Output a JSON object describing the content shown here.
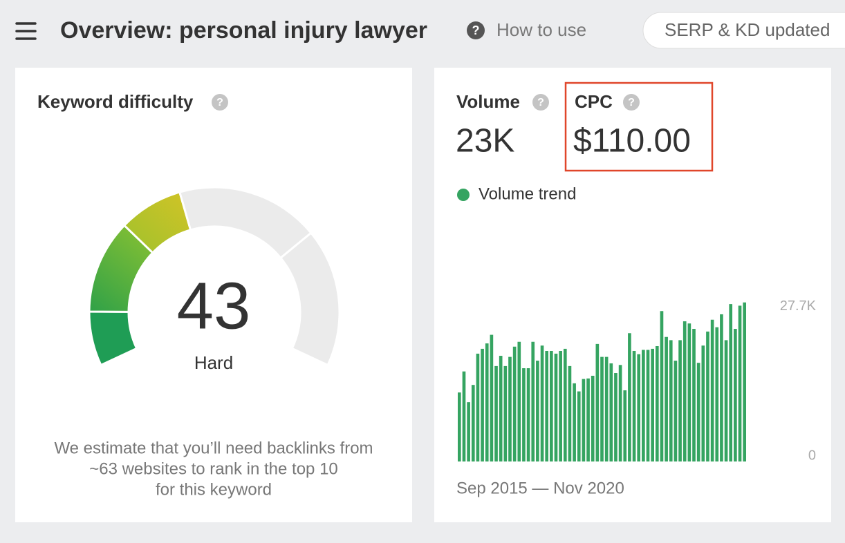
{
  "header": {
    "title": "Overview: personal injury lawyer",
    "how_to_use": "How to use",
    "badge": "SERP & KD updated",
    "help_icon": "?"
  },
  "keyword_difficulty": {
    "label": "Keyword difficulty",
    "score": 43,
    "score_label": "Hard",
    "description": [
      "We estimate that you’ll need backlinks from",
      "~63 websites to rank in the top 10",
      "for this keyword"
    ]
  },
  "metrics": {
    "volume_label": "Volume",
    "volume": "23K",
    "cpc_label": "CPC",
    "cpc": "$110.00"
  },
  "chart_data": {
    "type": "bar",
    "x_range_label": "Sep 2015 — Nov 2020",
    "series": [
      {
        "name": "Volume trend",
        "color": "#35a461",
        "values": [
          12800,
          16700,
          11000,
          14200,
          20000,
          20900,
          21900,
          23500,
          17700,
          19600,
          17700,
          19400,
          21300,
          22200,
          17300,
          17300,
          22200,
          18700,
          21500,
          20500,
          20500,
          20000,
          20500,
          20900,
          17700,
          14500,
          13000,
          15300,
          15400,
          15900,
          21800,
          19400,
          19400,
          18200,
          16400,
          17900,
          13200,
          23800,
          20500,
          19900,
          20700,
          20700,
          20900,
          21400,
          27900,
          23100,
          22500,
          18700,
          22500,
          26000,
          25600,
          24600,
          18300,
          21500,
          24100,
          26300,
          24900,
          27300,
          22500,
          29200,
          24600,
          28900,
          29500
        ]
      }
    ],
    "ylim": [
      0,
      29600
    ],
    "yticks": [
      0,
      {
        "value": 27700,
        "label": "27.7K"
      }
    ]
  }
}
